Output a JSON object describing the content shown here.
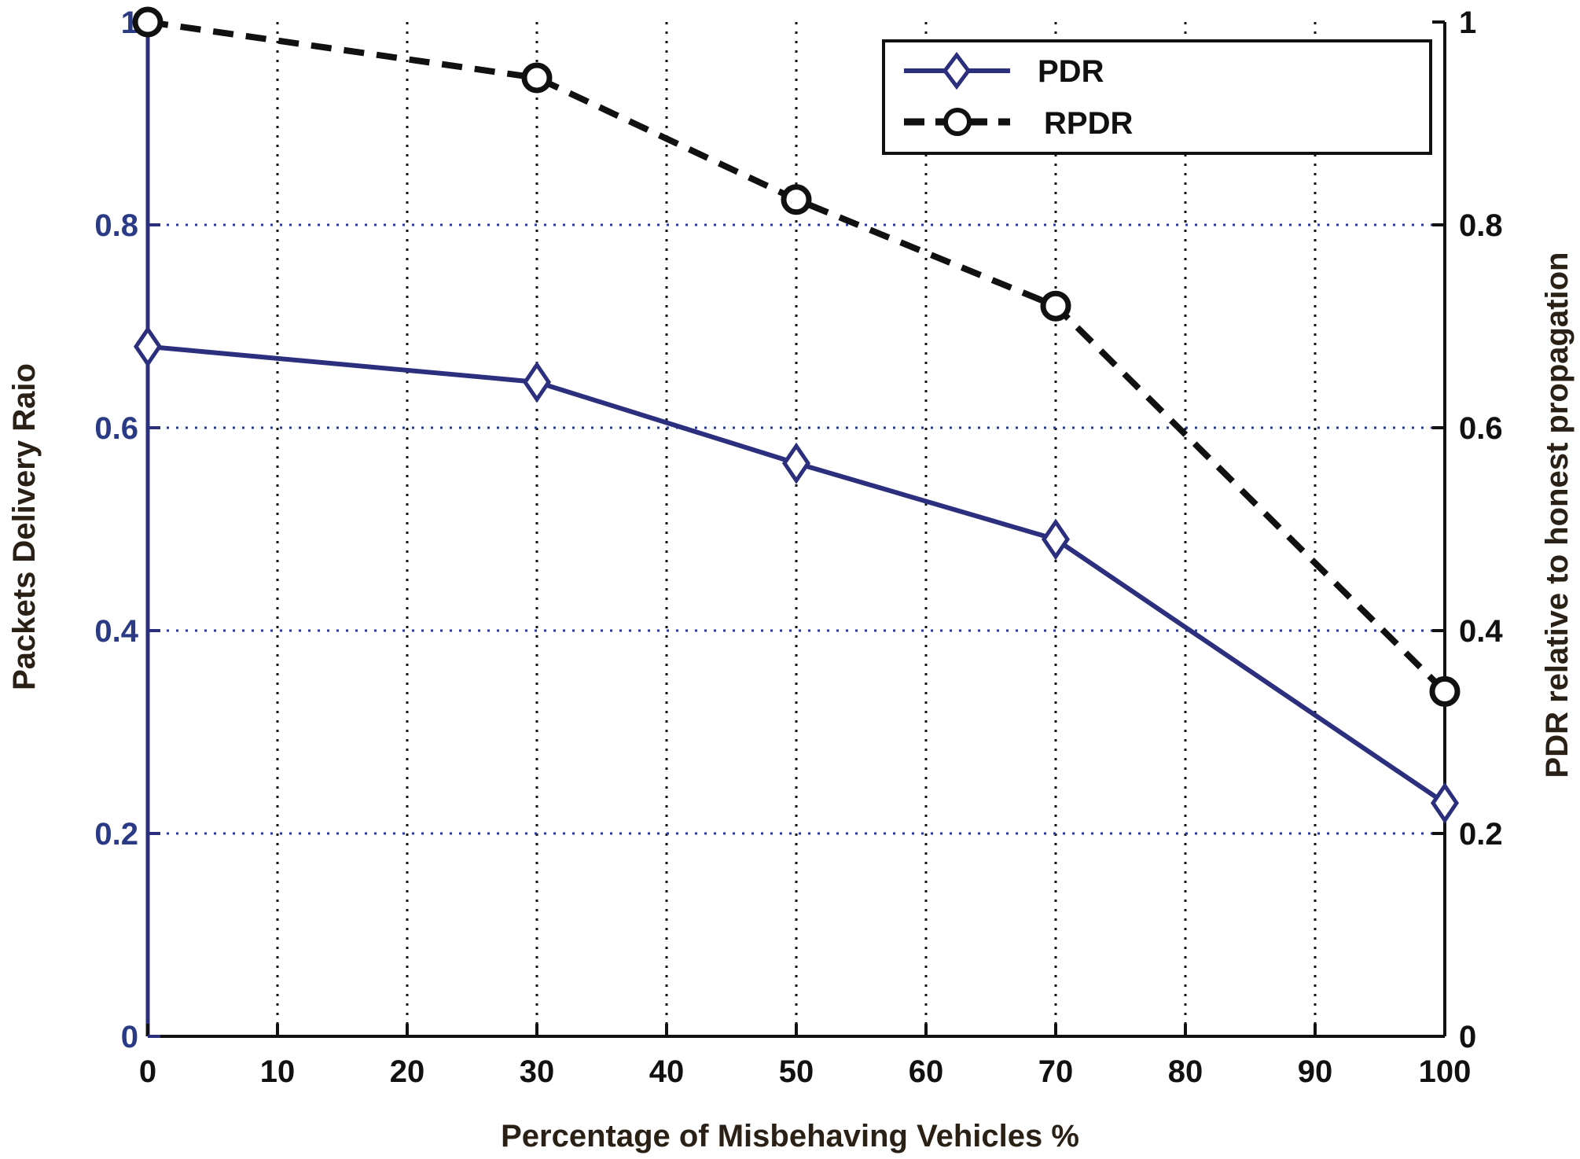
{
  "chart_data": {
    "type": "line",
    "title": "",
    "xlabel": "Percentage of Misbehaving Vehicles %",
    "ylabel": "Packets Delivery Raio",
    "y2label": "PDR relative to honest propagation",
    "xlim": [
      0,
      100
    ],
    "ylim": [
      0,
      1
    ],
    "y2lim": [
      0,
      1
    ],
    "x_ticks": [
      "0",
      "10",
      "20",
      "30",
      "40",
      "50",
      "60",
      "70",
      "80",
      "90",
      "100"
    ],
    "y_ticks": [
      "0",
      "0.2",
      "0.4",
      "0.6",
      "0.8",
      "1"
    ],
    "y2_ticks": [
      "0",
      "0.2",
      "0.4",
      "0.6",
      "0.8",
      "1"
    ],
    "grid": true,
    "legend_position": "top-right",
    "series": [
      {
        "name": "PDR",
        "axis": "left",
        "color": "#2b2f7e",
        "line_style": "solid",
        "marker": "diamond",
        "x": [
          0,
          30,
          50,
          70,
          100
        ],
        "values": [
          0.68,
          0.645,
          0.565,
          0.49,
          0.23
        ]
      },
      {
        "name": "RPDR",
        "axis": "right",
        "color": "#111111",
        "line_style": "dashed",
        "marker": "circle",
        "x": [
          0,
          30,
          50,
          70,
          100
        ],
        "values": [
          1.0,
          0.945,
          0.825,
          0.72,
          0.34
        ]
      }
    ]
  }
}
